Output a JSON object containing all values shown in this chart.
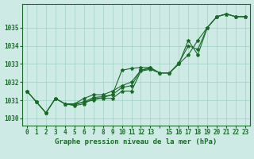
{
  "background_color": "#ceeae4",
  "grid_color": "#a8d5cb",
  "line_color": "#1a6b2a",
  "title": "Graphe pression niveau de la mer (hPa)",
  "hours": [
    0,
    1,
    2,
    3,
    4,
    5,
    6,
    7,
    8,
    9,
    10,
    11,
    12,
    13,
    14,
    15,
    16,
    17,
    18,
    19,
    20,
    21,
    22,
    23
  ],
  "xlabel_display": [
    "0",
    "1",
    "2",
    "3",
    "4",
    "5",
    "6",
    "7",
    "8",
    "9",
    "10",
    "11",
    "12",
    "13",
    "",
    "15",
    "16",
    "17",
    "18",
    "19",
    "20",
    "21",
    "22",
    "23"
  ],
  "ylim": [
    1029.6,
    1036.3
  ],
  "yticks": [
    1030,
    1031,
    1032,
    1033,
    1034,
    1035
  ],
  "series": [
    [
      1031.5,
      1030.9,
      1030.3,
      1031.1,
      1030.8,
      1030.7,
      1030.8,
      1031.1,
      1031.1,
      1031.1,
      1031.5,
      1031.5,
      1032.6,
      1032.7,
      1032.5,
      1032.5,
      1033.0,
      1034.3,
      1033.5,
      1035.0,
      1035.6,
      1035.75,
      1035.6,
      1035.6
    ],
    [
      1031.5,
      1030.9,
      1030.3,
      1031.1,
      1030.8,
      1030.8,
      1031.1,
      1031.3,
      1031.3,
      1031.5,
      1031.8,
      1032.0,
      1032.65,
      1032.8,
      null,
      null,
      null,
      null,
      null,
      null,
      null,
      null,
      null,
      null
    ],
    [
      null,
      null,
      null,
      null,
      1030.8,
      1030.8,
      1030.9,
      1031.0,
      1031.15,
      1031.3,
      1032.65,
      1032.75,
      1032.8,
      1032.8,
      1032.5,
      1032.5,
      1033.0,
      1033.5,
      1034.3,
      1035.0,
      1035.6,
      1035.75,
      1035.6,
      1035.6
    ],
    [
      1031.5,
      1030.9,
      1030.3,
      1031.1,
      1030.8,
      1030.75,
      1030.9,
      1031.15,
      1031.2,
      1031.3,
      1031.7,
      1031.8,
      1032.65,
      1032.75,
      1032.5,
      1032.5,
      1033.05,
      1034.0,
      1033.8,
      1035.0,
      1035.6,
      1035.75,
      1035.6,
      1035.6
    ]
  ],
  "marker": "*",
  "markersize": 3.0,
  "linewidth": 0.8,
  "tick_fontsize": 5.5,
  "title_fontsize": 6.5
}
